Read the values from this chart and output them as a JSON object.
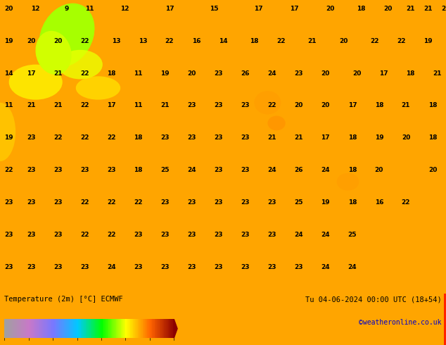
{
  "title_left": "Temperature (2m) [°C] ECMWF",
  "title_right": "Tu 04-06-2024 00:00 UTC (18+54)",
  "credit": "©weatheronline.co.uk",
  "colorbar_levels": [
    -28,
    -22,
    -10,
    0,
    12,
    26,
    38,
    48
  ],
  "colorbar_colors": [
    "#a0a0a0",
    "#c878c8",
    "#7878ff",
    "#00c8ff",
    "#00ff00",
    "#ffff00",
    "#ff6400",
    "#8b0000"
  ],
  "background_map_color": "#ffa500",
  "fig_width": 6.34,
  "fig_height": 4.9,
  "dpi": 100,
  "bottom_bar_color": "#ffa500",
  "right_stripe_color": "#ff2200"
}
